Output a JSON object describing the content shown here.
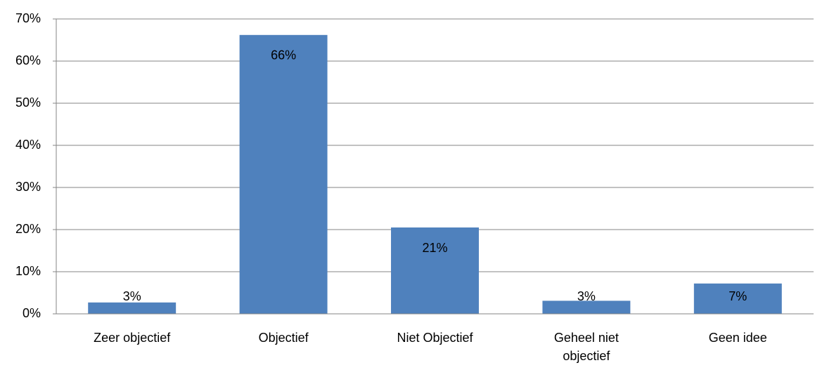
{
  "chart_data": {
    "type": "bar",
    "categories": [
      "Zeer objectief",
      "Objectief",
      "Niet Objectief",
      "Geheel niet objectief",
      "Geen idee"
    ],
    "values": [
      2.7,
      66.2,
      20.5,
      3.1,
      7.2
    ],
    "value_labels": [
      "3%",
      "66%",
      "21%",
      "3%",
      "7%"
    ],
    "color": "#4f81bd",
    "ylim": [
      0,
      70
    ],
    "yticks": [
      {
        "value": 0,
        "label": "0%"
      },
      {
        "value": 10,
        "label": "10%"
      },
      {
        "value": 20,
        "label": "20%"
      },
      {
        "value": 30,
        "label": "30%"
      },
      {
        "value": 40,
        "label": "40%"
      },
      {
        "value": 50,
        "label": "50%"
      },
      {
        "value": 60,
        "label": "60%"
      },
      {
        "value": 70,
        "label": "70%"
      }
    ],
    "grid": true
  }
}
